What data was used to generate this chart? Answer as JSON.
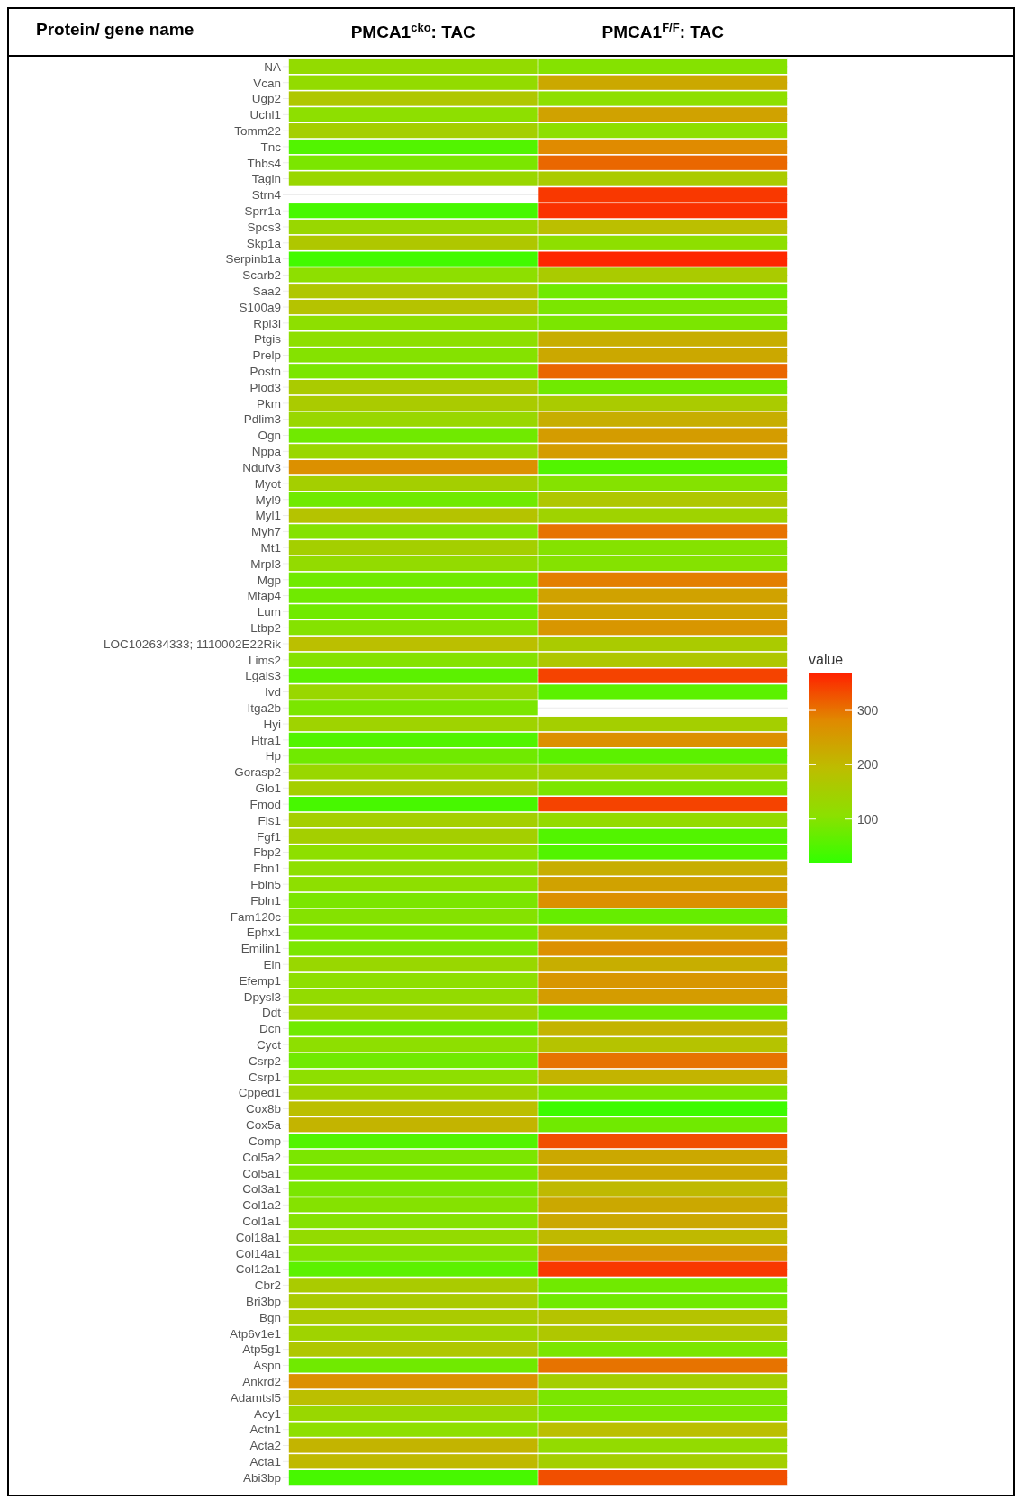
{
  "chart_data": {
    "type": "heatmap",
    "ylabel": "Protein/ gene name",
    "categories": [
      "PMCA1$^{cko}$: TAC",
      "PMCA1$^{F/F}$: TAC"
    ],
    "y_categories": [
      "NA",
      "Vcan",
      "Ugp2",
      "Uchl1",
      "Tomm22",
      "Tnc",
      "Thbs4",
      "Tagln",
      "Strn4",
      "Sprr1a",
      "Spcs3",
      "Skp1a",
      "Serpinb1a",
      "Scarb2",
      "Saa2",
      "S100a9",
      "Rpl3l",
      "Ptgis",
      "Prelp",
      "Postn",
      "Plod3",
      "Pkm",
      "Pdlim3",
      "Ogn",
      "Nppa",
      "Ndufv3",
      "Myot",
      "Myl9",
      "Myl1",
      "Myh7",
      "Mt1",
      "Mrpl3",
      "Mgp",
      "Mfap4",
      "Lum",
      "Ltbp2",
      "LOC102634333; 1110002E22Rik",
      "Lims2",
      "Lgals3",
      "Ivd",
      "Itga2b",
      "Hyi",
      "Htra1",
      "Hp",
      "Gorasp2",
      "Glo1",
      "Fmod",
      "Fis1",
      "Fgf1",
      "Fbp2",
      "Fbn1",
      "Fbln5",
      "Fbln1",
      "Fam120c",
      "Ephx1",
      "Emilin1",
      "Eln",
      "Efemp1",
      "Dpysl3",
      "Ddt",
      "Dcn",
      "Cyct",
      "Csrp2",
      "Csrp1",
      "Cpped1",
      "Cox8b",
      "Cox5a",
      "Comp",
      "Col5a2",
      "Col5a1",
      "Col3a1",
      "Col1a2",
      "Col1a1",
      "Col18a1",
      "Col14a1",
      "Col12a1",
      "Cbr2",
      "Bri3bp",
      "Bgn",
      "Atp6v1e1",
      "Atp5g1",
      "Aspn",
      "Ankrd2",
      "Adamtsl5",
      "Acy1",
      "Actn1",
      "Acta2",
      "Acta1",
      "Abi3bp"
    ],
    "cells": [
      [
        120,
        100
      ],
      [
        120,
        230
      ],
      [
        170,
        110
      ],
      [
        110,
        240
      ],
      [
        150,
        110
      ],
      [
        50,
        280
      ],
      [
        90,
        310
      ],
      [
        130,
        160
      ],
      [
        null,
        350
      ],
      [
        40,
        355
      ],
      [
        130,
        190
      ],
      [
        170,
        110
      ],
      [
        35,
        365
      ],
      [
        110,
        160
      ],
      [
        170,
        80
      ],
      [
        180,
        90
      ],
      [
        110,
        90
      ],
      [
        110,
        220
      ],
      [
        100,
        230
      ],
      [
        90,
        310
      ],
      [
        160,
        80
      ],
      [
        160,
        160
      ],
      [
        130,
        220
      ],
      [
        80,
        250
      ],
      [
        130,
        250
      ],
      [
        270,
        50
      ],
      [
        150,
        100
      ],
      [
        80,
        170
      ],
      [
        180,
        140
      ],
      [
        100,
        300
      ],
      [
        150,
        100
      ],
      [
        120,
        100
      ],
      [
        80,
        290
      ],
      [
        80,
        240
      ],
      [
        80,
        240
      ],
      [
        100,
        260
      ],
      [
        190,
        160
      ],
      [
        100,
        170
      ],
      [
        60,
        340
      ],
      [
        130,
        60
      ],
      [
        90,
        null
      ],
      [
        140,
        150
      ],
      [
        50,
        270
      ],
      [
        80,
        60
      ],
      [
        130,
        150
      ],
      [
        150,
        90
      ],
      [
        40,
        340
      ],
      [
        150,
        120
      ],
      [
        150,
        50
      ],
      [
        110,
        50
      ],
      [
        110,
        220
      ],
      [
        110,
        240
      ],
      [
        90,
        270
      ],
      [
        100,
        70
      ],
      [
        90,
        230
      ],
      [
        90,
        270
      ],
      [
        130,
        220
      ],
      [
        110,
        260
      ],
      [
        120,
        250
      ],
      [
        140,
        80
      ],
      [
        80,
        210
      ],
      [
        110,
        180
      ],
      [
        80,
        300
      ],
      [
        110,
        210
      ],
      [
        140,
        90
      ],
      [
        190,
        30
      ],
      [
        210,
        80
      ],
      [
        50,
        330
      ],
      [
        90,
        230
      ],
      [
        90,
        230
      ],
      [
        90,
        200
      ],
      [
        100,
        230
      ],
      [
        100,
        230
      ],
      [
        120,
        200
      ],
      [
        100,
        260
      ],
      [
        60,
        350
      ],
      [
        160,
        80
      ],
      [
        160,
        80
      ],
      [
        160,
        180
      ],
      [
        140,
        170
      ],
      [
        170,
        90
      ],
      [
        80,
        300
      ],
      [
        270,
        150
      ],
      [
        190,
        90
      ],
      [
        130,
        90
      ],
      [
        110,
        190
      ],
      [
        210,
        120
      ],
      [
        200,
        150
      ],
      [
        40,
        330
      ]
    ],
    "clabel": "value",
    "clim": [
      20,
      368
    ],
    "cticks": [
      100,
      200,
      300
    ],
    "grid": "y"
  }
}
